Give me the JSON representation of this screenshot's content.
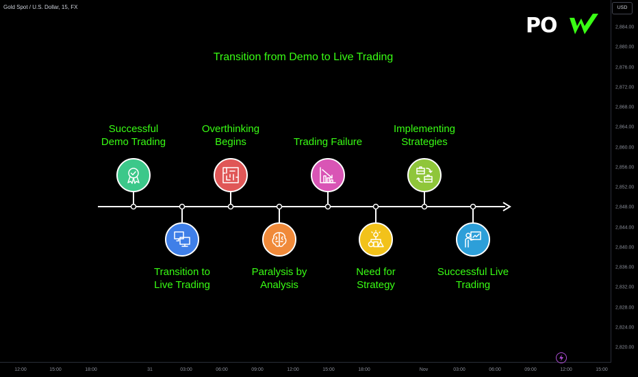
{
  "symbol": "Gold Spot / U.S. Dollar, 15, FX",
  "currency": "USD",
  "logo": {
    "text": "PO",
    "mark": "W"
  },
  "title": "Transition from Demo to Live Trading",
  "steps": [
    {
      "label_lines": [
        "Successful",
        "Demo Trading"
      ],
      "color": "#3cc88a",
      "icon": "award-badge-icon"
    },
    {
      "label_lines": [
        "Transition to",
        "Live Trading"
      ],
      "color": "#3f7fe8",
      "icon": "two-monitors-icon"
    },
    {
      "label_lines": [
        "Overthinking",
        "Begins"
      ],
      "color": "#e05757",
      "icon": "maze-icon"
    },
    {
      "label_lines": [
        "Paralysis by",
        "Analysis"
      ],
      "color": "#f08a3a",
      "icon": "brain-icon"
    },
    {
      "label_lines": [
        "Trading Failure"
      ],
      "color": "#d955b5",
      "icon": "declining-chart-icon"
    },
    {
      "label_lines": [
        "Need for",
        "Strategy"
      ],
      "color": "#f2c21a",
      "icon": "idea-shapes-icon"
    },
    {
      "label_lines": [
        "Implementing",
        "Strategies"
      ],
      "color": "#8fc63a",
      "icon": "briefcase-cycle-icon"
    },
    {
      "label_lines": [
        "Successful Live",
        "Trading"
      ],
      "color": "#2d9fd9",
      "icon": "presenter-icon"
    }
  ],
  "price_axis": [
    "2,884.00",
    "2,880.00",
    "2,876.00",
    "2,872.00",
    "2,868.00",
    "2,864.00",
    "2,860.00",
    "2,856.00",
    "2,852.00",
    "2,848.00",
    "2,844.00",
    "2,840.00",
    "2,836.00",
    "2,832.00",
    "2,828.00",
    "2,824.00",
    "2,820.00"
  ],
  "time_axis": [
    "12:00",
    "15:00",
    "18:00",
    "31",
    "03:00",
    "06:00",
    "09:00",
    "12:00",
    "15:00",
    "18:00",
    "Nov",
    "03:00",
    "06:00",
    "09:00",
    "12:00",
    "15:00"
  ],
  "colors": {
    "accent": "#39ff14",
    "background": "#000000"
  }
}
